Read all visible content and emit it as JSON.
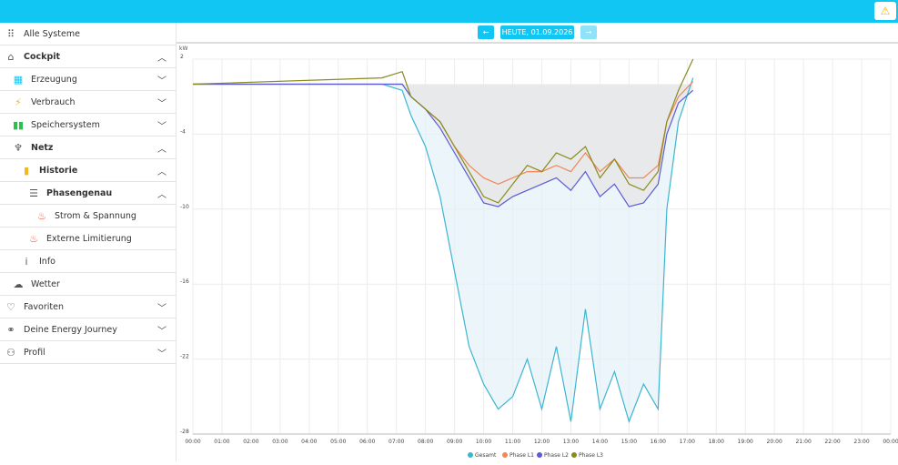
{
  "topbar": {
    "warning_icon": "warning-triangle-icon",
    "accent": "#12c6f3"
  },
  "sidebar": {
    "items": [
      {
        "label": "Alle Systeme",
        "icon": "grid-dots-icon",
        "bold": false,
        "chevron": ""
      },
      {
        "label": "Cockpit",
        "icon": "home-icon",
        "bold": true,
        "chevron": "up"
      },
      {
        "label": "Erzeugung",
        "icon": "solar-panel-icon",
        "bold": false,
        "chevron": "down"
      },
      {
        "label": "Verbrauch",
        "icon": "lightning-icon",
        "bold": false,
        "chevron": "down"
      },
      {
        "label": "Speichersystem",
        "icon": "battery-icon",
        "bold": false,
        "chevron": "down"
      },
      {
        "label": "Netz",
        "icon": "power-pylon-icon",
        "bold": true,
        "chevron": "up"
      },
      {
        "label": "Historie",
        "icon": "bar-chart-icon",
        "bold": true,
        "chevron": "up"
      },
      {
        "label": "Phasengenau",
        "icon": "list-icon",
        "bold": true,
        "chevron": "up"
      },
      {
        "label": "Strom & Spannung",
        "icon": "flame-icon",
        "bold": false,
        "chevron": ""
      },
      {
        "label": "Externe Limitierung",
        "icon": "flame-icon",
        "bold": false,
        "chevron": ""
      },
      {
        "label": "Info",
        "icon": "info-icon",
        "bold": false,
        "chevron": ""
      },
      {
        "label": "Wetter",
        "icon": "weather-cloud-icon",
        "bold": false,
        "chevron": ""
      },
      {
        "label": "Favoriten",
        "icon": "heart-icon",
        "bold": false,
        "chevron": "down"
      },
      {
        "label": "Deine Energy Journey",
        "icon": "journey-icon",
        "bold": false,
        "chevron": "down"
      },
      {
        "label": "Profil",
        "icon": "user-icon",
        "bold": false,
        "chevron": "down"
      }
    ]
  },
  "date_nav": {
    "prev_icon": "arrow-left-icon",
    "date_label": "HEUTE, 01.09.2026",
    "next_icon": "arrow-right-icon"
  },
  "chart_data": {
    "type": "line",
    "ylabel": "kW",
    "ylim": [
      -28,
      2
    ],
    "yticks": [
      "2",
      "-4",
      "-10",
      "-16",
      "-22",
      "-28"
    ],
    "ytick_values": [
      2,
      -4,
      -10,
      -16,
      -22,
      -28
    ],
    "xticks": [
      "00:00",
      "01:00",
      "02:00",
      "03:00",
      "04:00",
      "05:00",
      "06:00",
      "07:00",
      "08:00",
      "09:00",
      "10:00",
      "11:00",
      "12:00",
      "13:00",
      "14:00",
      "15:00",
      "16:00",
      "17:00",
      "18:00",
      "19:00",
      "20:00",
      "21:00",
      "22:00",
      "23:00",
      "00:00"
    ],
    "x_hours": [
      0,
      6.5,
      7.2,
      7.5,
      8,
      8.5,
      9,
      9.5,
      10,
      10.5,
      11,
      11.5,
      12,
      12.5,
      13,
      13.5,
      14,
      14.5,
      15,
      15.5,
      16,
      16.3,
      16.7,
      17.2
    ],
    "grid": true,
    "legend_position": "bottom",
    "series": [
      {
        "name": "Gesamt",
        "color": "#3cb5d0",
        "values": [
          0,
          0,
          -0.5,
          -2.5,
          -5,
          -9,
          -15,
          -21,
          -24,
          -26,
          -25,
          -22,
          -26,
          -21,
          -27,
          -18,
          -26,
          -23,
          -27,
          -24,
          -26,
          -10,
          -3,
          0.5
        ]
      },
      {
        "name": "Phase L1",
        "color": "#f2875a",
        "values": [
          0,
          0,
          0,
          -1,
          -2,
          -3,
          -5,
          -6.5,
          -7.5,
          -8,
          -7.5,
          -7,
          -7,
          -6.5,
          -7,
          -5.5,
          -7,
          -6,
          -7.5,
          -7.5,
          -6.5,
          -3,
          -1,
          0.2
        ]
      },
      {
        "name": "Phase L2",
        "color": "#5b5bd6",
        "values": [
          0,
          0,
          0,
          -1,
          -2,
          -3.5,
          -5.5,
          -7.5,
          -9.5,
          -9.8,
          -9,
          -8.5,
          -8,
          -7.5,
          -8.5,
          -7,
          -9,
          -8,
          -9.8,
          -9.5,
          -8,
          -4,
          -1.5,
          -0.5
        ]
      },
      {
        "name": "Phase L3",
        "color": "#8a8a1e",
        "values": [
          0,
          0.5,
          1,
          -1,
          -2,
          -3,
          -5,
          -7,
          -9,
          -9.5,
          -8,
          -6.5,
          -7,
          -5.5,
          -6,
          -5,
          -7.5,
          -6,
          -8,
          -8.5,
          -7,
          -3,
          -0.5,
          2
        ]
      }
    ]
  }
}
